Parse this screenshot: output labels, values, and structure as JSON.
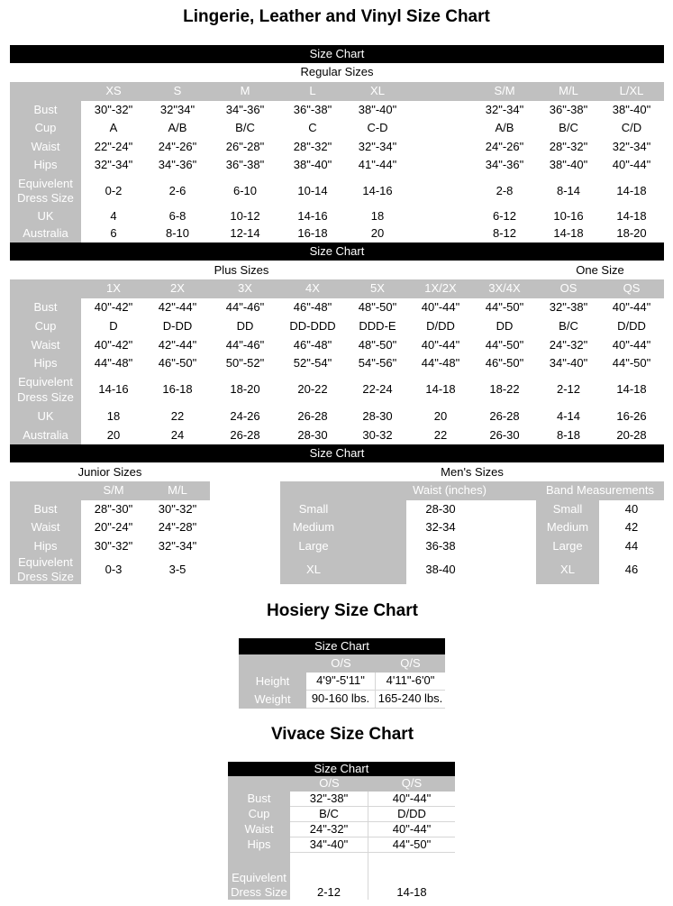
{
  "title": "Lingerie, Leather and Vinyl Size Chart",
  "bar_label": "Size Chart",
  "regular": {
    "heading": "Regular Sizes",
    "columns": [
      "XS",
      "S",
      "M",
      "L",
      "XL",
      "",
      "S/M",
      "M/L",
      "L/XL"
    ],
    "rows": [
      {
        "label": "Bust",
        "values": [
          "30\"-32\"",
          "32\"34\"",
          "34\"-36\"",
          "36\"-38\"",
          "38\"-40\"",
          "",
          "32\"-34\"",
          "36\"-38\"",
          "38\"-40\""
        ]
      },
      {
        "label": "Cup",
        "values": [
          "A",
          "A/B",
          "B/C",
          "C",
          "C-D",
          "",
          "A/B",
          "B/C",
          "C/D"
        ]
      },
      {
        "label": "Waist",
        "values": [
          "22\"-24\"",
          "24\"-26\"",
          "26\"-28\"",
          "28\"-32\"",
          "32\"-34\"",
          "",
          "24\"-26\"",
          "28\"-32\"",
          "32\"-34\""
        ]
      },
      {
        "label": "Hips",
        "values": [
          "32\"-34\"",
          "34\"-36\"",
          "36\"-38\"",
          "38\"-40\"",
          "41\"-44\"",
          "",
          "34\"-36\"",
          "38\"-40\"",
          "40\"-44\""
        ]
      },
      {
        "label": "Equivelent Dress Size",
        "values": [
          "0-2",
          "2-6",
          "6-10",
          "10-14",
          "14-16",
          "",
          "2-8",
          "8-14",
          "14-18"
        ]
      },
      {
        "label": "UK",
        "values": [
          "4",
          "6-8",
          "10-12",
          "14-16",
          "18",
          "",
          "6-12",
          "10-16",
          "14-18"
        ]
      },
      {
        "label": "Australia",
        "values": [
          "6",
          "8-10",
          "12-14",
          "16-18",
          "20",
          "",
          "8-12",
          "14-18",
          "18-20"
        ]
      }
    ]
  },
  "plus": {
    "heading": "Plus Sizes",
    "heading_one_size": "One Size",
    "columns": [
      "1X",
      "2X",
      "3X",
      "4X",
      "5X",
      "1X/2X",
      "3X/4X",
      "OS",
      "QS"
    ],
    "rows": [
      {
        "label": "Bust",
        "values": [
          "40\"-42\"",
          "42\"-44\"",
          "44\"-46\"",
          "46\"-48\"",
          "48\"-50\"",
          "40\"-44\"",
          "44\"-50\"",
          "32\"-38\"",
          "40\"-44\""
        ]
      },
      {
        "label": "Cup",
        "values": [
          "D",
          "D-DD",
          "DD",
          "DD-DDD",
          "DDD-E",
          "D/DD",
          "DD",
          "B/C",
          "D/DD"
        ]
      },
      {
        "label": "Waist",
        "values": [
          "40\"-42\"",
          "42\"-44\"",
          "44\"-46\"",
          "46\"-48\"",
          "48\"-50\"",
          "40\"-44\"",
          "44\"-50\"",
          "24\"-32\"",
          "40\"-44\""
        ]
      },
      {
        "label": "Hips",
        "values": [
          "44\"-48\"",
          "46\"-50\"",
          "50\"-52\"",
          "52\"-54\"",
          "54\"-56\"",
          "44\"-48\"",
          "46\"-50\"",
          "34\"-40\"",
          "44\"-50\""
        ]
      },
      {
        "label": "Equivelent Dress Size",
        "values": [
          "14-16",
          "16-18",
          "18-20",
          "20-22",
          "22-24",
          "14-18",
          "18-22",
          "2-12",
          "14-18"
        ]
      },
      {
        "label": "UK",
        "values": [
          "18",
          "22",
          "24-26",
          "26-28",
          "28-30",
          "20",
          "26-28",
          "4-14",
          "16-26"
        ]
      },
      {
        "label": "Australia",
        "values": [
          "20",
          "24",
          "26-28",
          "28-30",
          "30-32",
          "22",
          "26-30",
          "8-18",
          "20-28"
        ]
      }
    ]
  },
  "junior": {
    "heading": "Junior Sizes",
    "columns": [
      "S/M",
      "M/L"
    ],
    "rows": [
      {
        "label": "Bust",
        "values": [
          "28\"-30\"",
          "30\"-32\""
        ]
      },
      {
        "label": "Waist",
        "values": [
          "20\"-24\"",
          "24\"-28\""
        ]
      },
      {
        "label": "Hips",
        "values": [
          "30\"-32\"",
          "32\"-34\""
        ]
      },
      {
        "label": "Equivelent Dress Size",
        "values": [
          "0-3",
          "3-5"
        ]
      }
    ]
  },
  "mens": {
    "heading": "Men's Sizes",
    "waist_header": "Waist (inches)",
    "band_header": "Band Measurements",
    "rows": [
      {
        "label": "Small",
        "waist": "28-30",
        "band_label": "Small",
        "band": "40"
      },
      {
        "label": "Medium",
        "waist": "32-34",
        "band_label": "Medium",
        "band": "42"
      },
      {
        "label": "Large",
        "waist": "36-38",
        "band_label": "Large",
        "band": "44"
      },
      {
        "label": "XL",
        "waist": "38-40",
        "band_label": "XL",
        "band": "46"
      }
    ]
  },
  "hosiery": {
    "title": "Hosiery Size Chart",
    "bar_label": "Size Chart",
    "columns": [
      "O/S",
      "Q/S"
    ],
    "rows": [
      {
        "label": "Height",
        "values": [
          "4'9\"-5'11\"",
          "4'11\"-6'0\""
        ]
      },
      {
        "label": "Weight",
        "values": [
          "90-160 lbs.",
          "165-240 lbs."
        ]
      }
    ]
  },
  "vivace": {
    "title": "Vivace Size Chart",
    "bar_label": "Size Chart",
    "columns": [
      "O/S",
      "Q/S"
    ],
    "rows": [
      {
        "label": "Bust",
        "values": [
          "32\"-38\"",
          "40\"-44\""
        ]
      },
      {
        "label": "Cup",
        "values": [
          "B/C",
          "D/DD"
        ]
      },
      {
        "label": "Waist",
        "values": [
          "24\"-32\"",
          "40\"-44\""
        ]
      },
      {
        "label": "Hips",
        "values": [
          "34\"-40\"",
          "44\"-50\""
        ]
      },
      {
        "label": "Equivelent Dress Size",
        "values": [
          "2-12",
          "14-18"
        ]
      }
    ]
  },
  "colors": {
    "bar": "#000000",
    "label_bg": "#c0c0c0",
    "label_text": "#ffffff"
  }
}
